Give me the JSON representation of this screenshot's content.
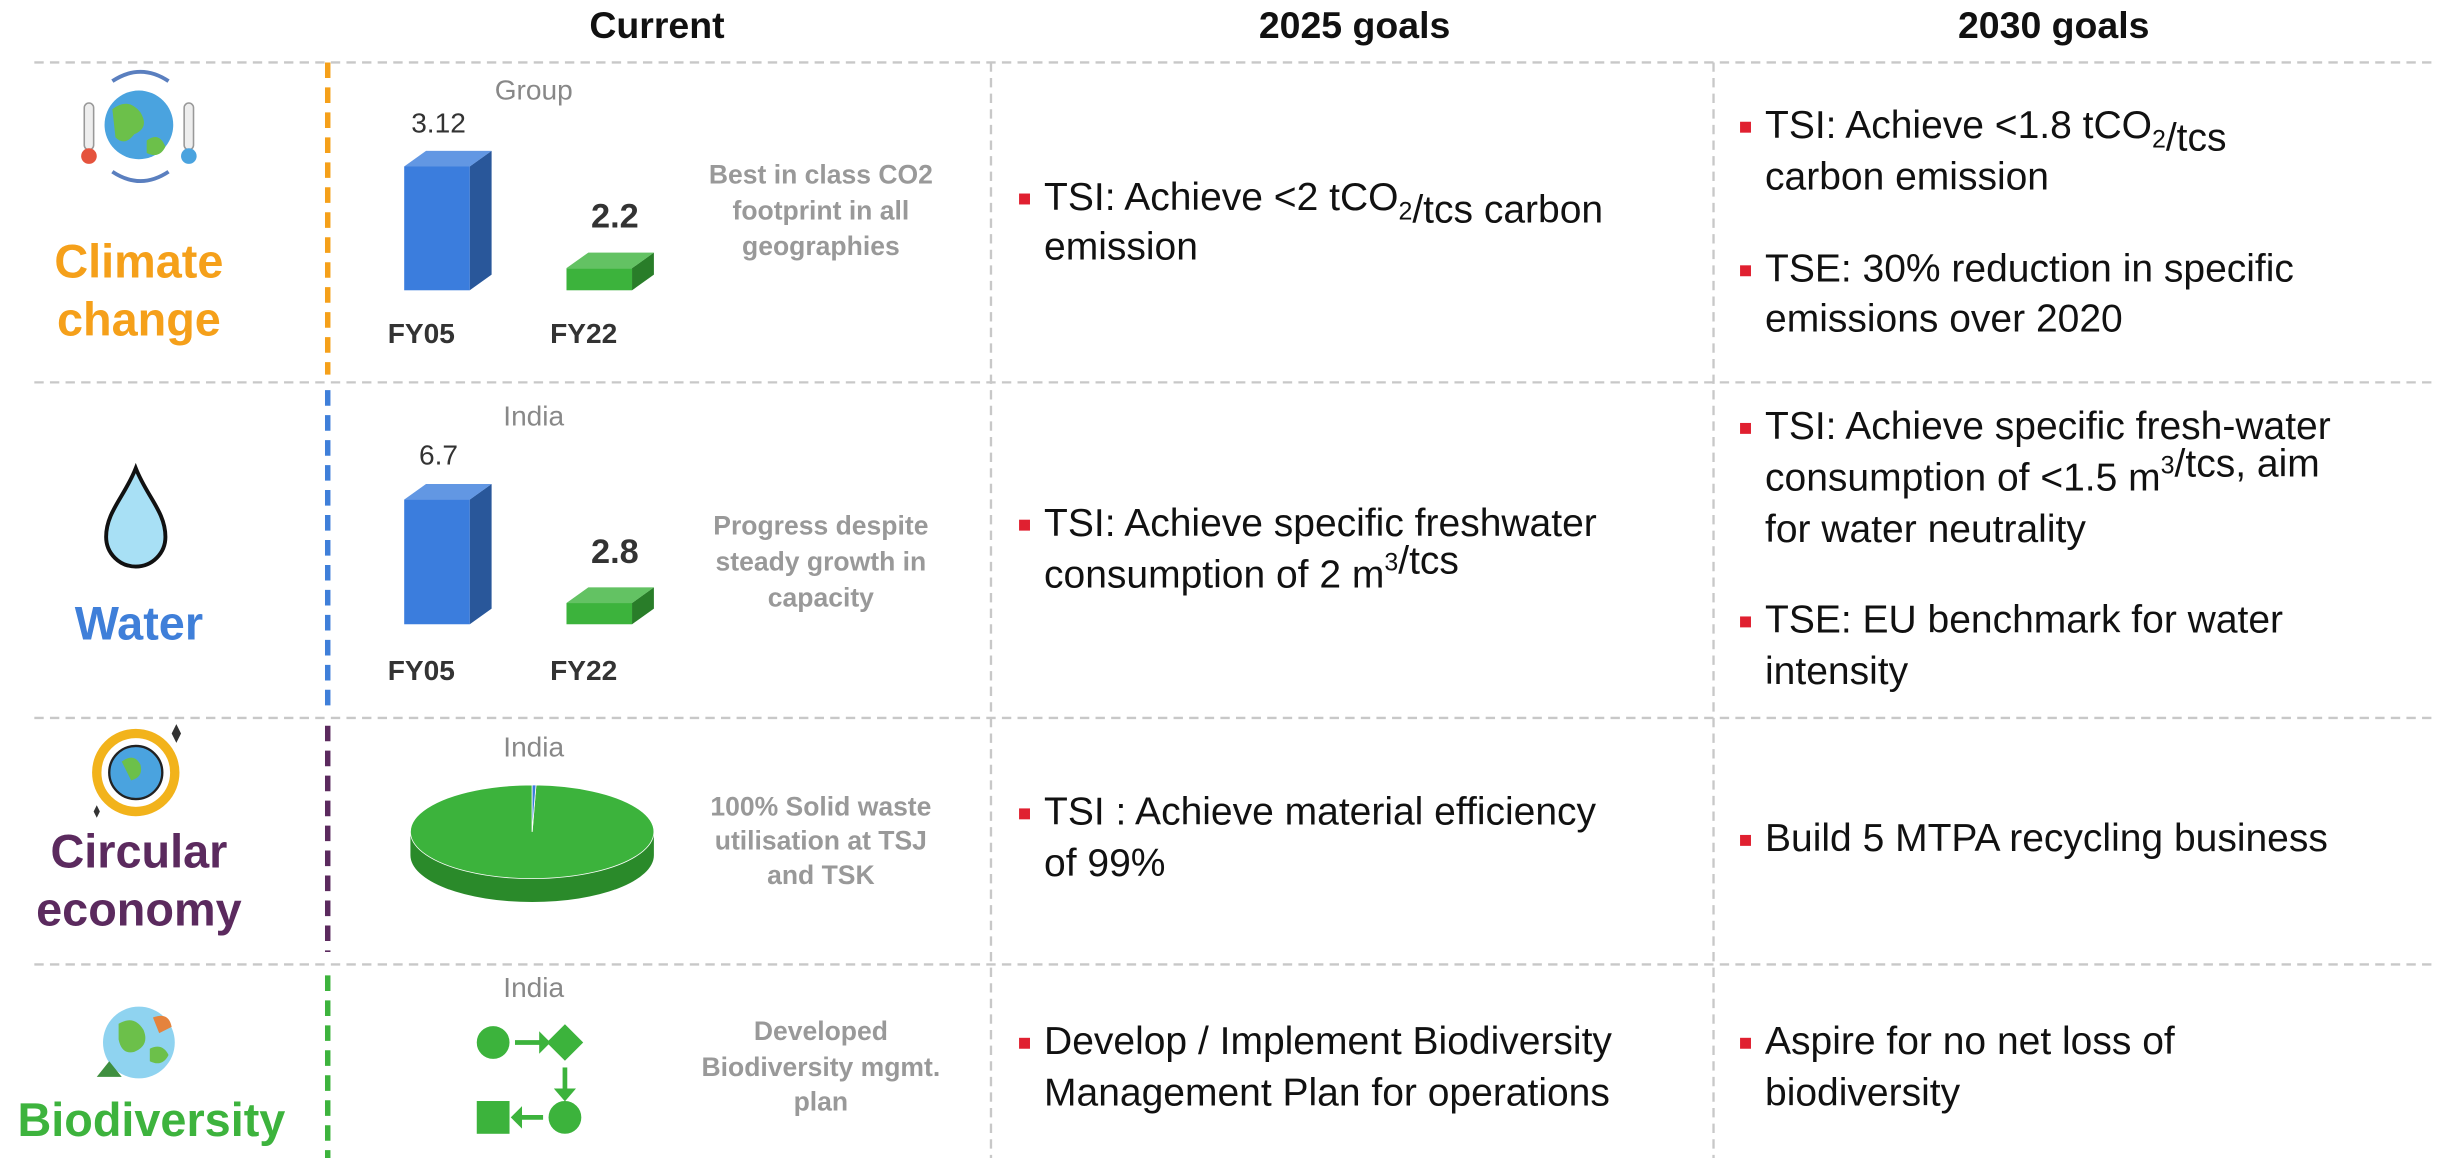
{
  "header": {
    "columns": [
      "Current",
      "2025 goals",
      "2030 goals"
    ]
  },
  "rows": [
    {
      "label": [
        "Climate",
        "change"
      ],
      "color": "#f5a01a",
      "scope": "Group",
      "chart": {
        "type": "bar",
        "categories": [
          "FY05",
          "FY22"
        ],
        "values": [
          3.12,
          2.2
        ],
        "colors": [
          "#3b7ddd",
          "#3cb33c"
        ],
        "ylim": [
          2,
          3.2
        ]
      },
      "note": [
        "Best in class CO2",
        "footprint in all",
        "geographies"
      ],
      "goals_2025": [
        [
          [
            {
              "text": "TSI: Achieve <2 tCO"
            },
            {
              "sub": "2"
            },
            {
              "text": "/tcs carbon"
            }
          ],
          [
            {
              "text": "emission"
            }
          ]
        ]
      ],
      "goals_2030": [
        [
          [
            {
              "text": "TSI: Achieve <1.8 tCO"
            },
            {
              "sub": "2"
            },
            {
              "text": "/tcs"
            }
          ],
          [
            {
              "text": "carbon emission"
            }
          ]
        ],
        [
          [
            {
              "text": "TSE: 30% reduction in specific"
            }
          ],
          [
            {
              "text": "emissions over 2020"
            }
          ]
        ]
      ]
    },
    {
      "label": [
        "Water"
      ],
      "color": "#3f7fd9",
      "scope": "India",
      "chart": {
        "type": "bar",
        "categories": [
          "FY05",
          "FY22"
        ],
        "values": [
          6.7,
          2.8
        ],
        "colors": [
          "#3b7ddd",
          "#3cb33c"
        ],
        "ylim": [
          2,
          7
        ]
      },
      "note": [
        "Progress despite",
        "steady growth in",
        "capacity"
      ],
      "goals_2025": [
        [
          [
            {
              "text": "TSI: Achieve specific freshwater"
            }
          ],
          [
            {
              "text": "consumption of 2 m"
            },
            {
              "sup": "3"
            },
            {
              "text": "/tcs"
            }
          ]
        ]
      ],
      "goals_2030": [
        [
          [
            {
              "text": "TSI: Achieve specific fresh-water"
            }
          ],
          [
            {
              "text": "consumption of <1.5 m"
            },
            {
              "sup": "3"
            },
            {
              "text": "/tcs, aim"
            }
          ],
          [
            {
              "text": "for water neutrality"
            }
          ]
        ],
        [
          [
            {
              "text": "TSE: EU benchmark for water"
            }
          ],
          [
            {
              "text": "intensity"
            }
          ]
        ]
      ]
    },
    {
      "label": [
        "Circular",
        "economy"
      ],
      "color": "#5b2a5e",
      "scope": "India",
      "chart": {
        "type": "pie",
        "values": [
          99.5,
          0.5
        ],
        "colors": [
          "#3cb33c",
          "#3b7ddd"
        ]
      },
      "note": [
        "100% Solid waste",
        "utilisation at TSJ",
        "and TSK"
      ],
      "goals_2025": [
        [
          [
            {
              "text": "TSI : Achieve material efficiency"
            }
          ],
          [
            {
              "text": "of 99%"
            }
          ]
        ]
      ],
      "goals_2030": [
        [
          [
            {
              "text": "Build 5 MTPA recycling business"
            }
          ]
        ]
      ]
    },
    {
      "label": [
        "Biodiversity"
      ],
      "color": "#3db33d",
      "scope": "India",
      "note": [
        "Developed",
        "Biodiversity mgmt.",
        "plan"
      ],
      "goals_2025": [
        [
          [
            {
              "text": "Develop / Implement Biodiversity"
            }
          ],
          [
            {
              "text": "Management Plan for operations"
            }
          ]
        ]
      ],
      "goals_2030": [
        [
          [
            {
              "text": "Aspire for no net loss of"
            }
          ],
          [
            {
              "text": "biodiversity"
            }
          ]
        ]
      ]
    }
  ]
}
